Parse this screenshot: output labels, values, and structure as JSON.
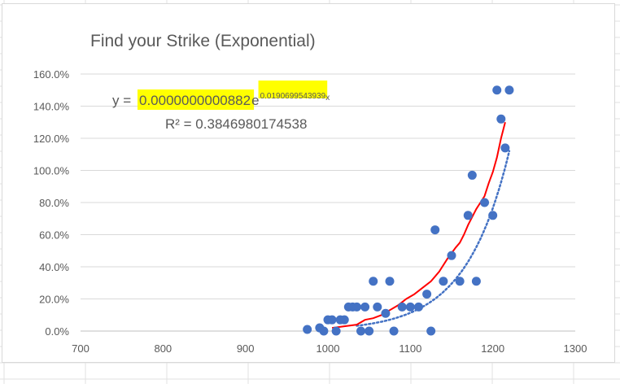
{
  "chart_data": {
    "type": "scatter",
    "title": "Find your Strike (Exponential)",
    "xlabel": "",
    "ylabel": "",
    "xlim": [
      700,
      1300
    ],
    "ylim": [
      0,
      1.6
    ],
    "x_ticks": [
      700,
      800,
      900,
      1000,
      1100,
      1200,
      1300
    ],
    "y_ticks": [
      0,
      0.2,
      0.4,
      0.6,
      0.8,
      1.0,
      1.2,
      1.4,
      1.6
    ],
    "y_tick_labels": [
      "0.0%",
      "20.0%",
      "40.0%",
      "60.0%",
      "80.0%",
      "100.0%",
      "120.0%",
      "140.0%",
      "160.0%"
    ],
    "grid": "horizontal",
    "legend": "none",
    "series": [
      {
        "marker_color": "#4472c4",
        "points": [
          [
            975,
            0.01
          ],
          [
            990,
            0.02
          ],
          [
            995,
            0.0
          ],
          [
            1000,
            0.07
          ],
          [
            1005,
            0.07
          ],
          [
            1010,
            0.0
          ],
          [
            1015,
            0.07
          ],
          [
            1020,
            0.07
          ],
          [
            1025,
            0.15
          ],
          [
            1030,
            0.15
          ],
          [
            1035,
            0.15
          ],
          [
            1040,
            0.0
          ],
          [
            1045,
            0.15
          ],
          [
            1050,
            0.0
          ],
          [
            1055,
            0.31
          ],
          [
            1060,
            0.15
          ],
          [
            1070,
            0.11
          ],
          [
            1075,
            0.31
          ],
          [
            1080,
            0.0
          ],
          [
            1090,
            0.15
          ],
          [
            1100,
            0.15
          ],
          [
            1110,
            0.15
          ],
          [
            1120,
            0.23
          ],
          [
            1125,
            0.0
          ],
          [
            1130,
            0.63
          ],
          [
            1140,
            0.31
          ],
          [
            1150,
            0.47
          ],
          [
            1160,
            0.31
          ],
          [
            1170,
            0.72
          ],
          [
            1175,
            0.97
          ],
          [
            1180,
            0.31
          ],
          [
            1190,
            0.8
          ],
          [
            1200,
            0.72
          ],
          [
            1205,
            1.5
          ],
          [
            1210,
            1.32
          ],
          [
            1215,
            1.14
          ],
          [
            1220,
            1.5
          ]
        ]
      }
    ],
    "trendline": {
      "type": "exponential",
      "color": "#4472c4",
      "style": "dotted",
      "x_range": [
        1035,
        1220
      ],
      "a": 8.82e-11,
      "b": 0.0190699543939
    },
    "red_curve": {
      "color": "#ff0000",
      "points": [
        [
          1005,
          0.02
        ],
        [
          1020,
          0.03
        ],
        [
          1035,
          0.04
        ],
        [
          1045,
          0.07
        ],
        [
          1055,
          0.08
        ],
        [
          1065,
          0.1
        ],
        [
          1075,
          0.13
        ],
        [
          1085,
          0.16
        ],
        [
          1095,
          0.2
        ],
        [
          1105,
          0.23
        ],
        [
          1115,
          0.27
        ],
        [
          1125,
          0.31
        ],
        [
          1135,
          0.37
        ],
        [
          1145,
          0.45
        ],
        [
          1155,
          0.52
        ],
        [
          1160,
          0.55
        ],
        [
          1165,
          0.6
        ],
        [
          1170,
          0.66
        ],
        [
          1175,
          0.71
        ],
        [
          1180,
          0.76
        ],
        [
          1185,
          0.8
        ],
        [
          1190,
          0.84
        ],
        [
          1195,
          0.92
        ],
        [
          1200,
          0.99
        ],
        [
          1205,
          1.08
        ],
        [
          1210,
          1.2
        ],
        [
          1215,
          1.3
        ]
      ]
    },
    "equation": {
      "prefix": "y = ",
      "coefficient": "0.0000000000882",
      "base": "e",
      "exponent": "0.0190699543939",
      "variable": "x",
      "r_squared": "R² = 0.3846980174538",
      "highlight_color": "#ffff00"
    }
  }
}
